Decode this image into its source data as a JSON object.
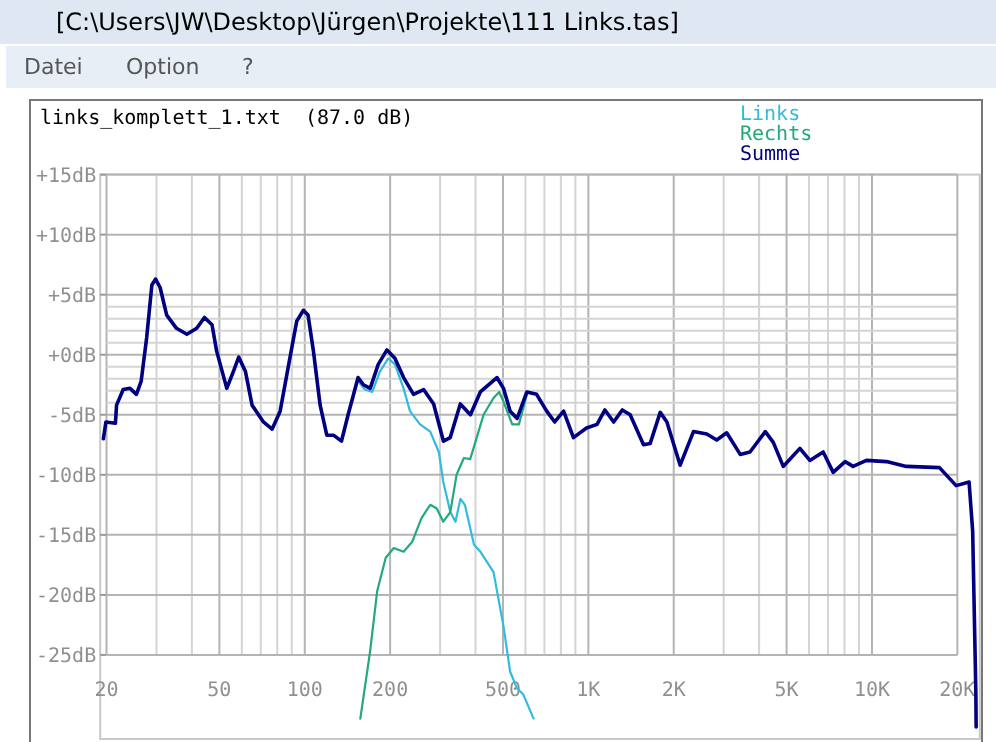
{
  "chart_data": {
    "type": "line",
    "title": "links_komplett_1.txt  (87.0 dB)",
    "annotations": [
      "[C:\\Users\\JW\\Desktop\\Jürgen\\Projekte\\111 Links.tas]",
      "Datei",
      "Option",
      "?"
    ],
    "log": "x",
    "grid": true,
    "legend": "top right",
    "marker": "none",
    "line_style": "solid",
    "xlim": [
      19,
      24000
    ],
    "ylim": [
      -32,
      15
    ],
    "xticks": [
      20,
      {
        "value": 30,
        "label": null
      },
      {
        "value": 40,
        "label": null
      },
      50,
      {
        "value": 60,
        "label": null
      },
      {
        "value": 70,
        "label": null
      },
      {
        "value": 80,
        "label": null
      },
      {
        "value": 90,
        "label": null
      },
      100,
      200,
      {
        "value": 300,
        "label": null
      },
      {
        "value": 400,
        "label": null
      },
      500,
      {
        "value": 600,
        "label": null
      },
      {
        "value": 700,
        "label": null
      },
      {
        "value": 800,
        "label": null
      },
      {
        "value": 900,
        "label": null
      },
      {
        "value": 1000,
        "label": "1K"
      },
      {
        "value": 2000,
        "label": "2K"
      },
      {
        "value": 3000,
        "label": null
      },
      {
        "value": 4000,
        "label": null
      },
      {
        "value": 5000,
        "label": "5K"
      },
      {
        "value": 6000,
        "label": null
      },
      {
        "value": 7000,
        "label": null
      },
      {
        "value": 8000,
        "label": null
      },
      {
        "value": 9000,
        "label": null
      },
      {
        "value": 10000,
        "label": "10K"
      },
      {
        "value": 20000,
        "label": "20K"
      }
    ],
    "yticks": [
      {
        "value": 15,
        "label": "+15dB"
      },
      {
        "value": 10,
        "label": "+10dB"
      },
      {
        "value": 5,
        "label": "+5dB"
      },
      {
        "value": 4,
        "label": null
      },
      {
        "value": 3,
        "label": null
      },
      {
        "value": 2,
        "label": null
      },
      {
        "value": 1,
        "label": null
      },
      {
        "value": 0,
        "label": "+0dB"
      },
      {
        "value": -1,
        "label": null
      },
      {
        "value": -2,
        "label": null
      },
      {
        "value": -3,
        "label": null
      },
      {
        "value": -4,
        "label": null
      },
      {
        "value": -5,
        "label": "-5dB"
      },
      {
        "value": -10,
        "label": "-10dB"
      },
      {
        "value": -15,
        "label": "-15dB"
      },
      {
        "value": -20,
        "label": "-20dB"
      },
      {
        "value": -25,
        "label": "-25dB"
      }
    ],
    "series": [
      {
        "name": "Links",
        "color": "#33bbdd",
        "x": [
          154,
          163,
          173,
          184,
          197,
          208,
          223,
          235,
          255,
          277,
          297,
          308,
          326,
          340,
          354,
          367,
          395,
          416,
          463,
          502,
          530,
          561,
          590,
          641
        ],
        "values": [
          -2.2,
          -2.9,
          -3.1,
          -1.4,
          -0.3,
          -0.8,
          -2.8,
          -4.7,
          -5.8,
          -6.4,
          -8.1,
          -10.6,
          -13.1,
          -13.9,
          -12,
          -12.5,
          -15.8,
          -16.4,
          -18.1,
          -22.6,
          -26.4,
          -27.8,
          -28.3,
          -30.3
        ]
      },
      {
        "name": "Rechts",
        "color": "#22aa77",
        "x": [
          157,
          170,
          180,
          193,
          206,
          223,
          239,
          258,
          277,
          292,
          308,
          326,
          343,
          364,
          383,
          404,
          427,
          463,
          485,
          502,
          539,
          569,
          607
        ],
        "values": [
          -30.3,
          -24.7,
          -19.7,
          -16.9,
          -16.1,
          -16.4,
          -15.6,
          -13.6,
          -12.5,
          -12.8,
          -13.9,
          -13.1,
          -10,
          -8.6,
          -8.7,
          -6.9,
          -5,
          -3.6,
          -3.1,
          -3.9,
          -5.8,
          -5.8,
          -3.3
        ]
      },
      {
        "name": "Summe",
        "color": "#000080",
        "x": [
          19.5,
          19.9,
          21.5,
          21.7,
          22.9,
          24.2,
          25.5,
          26.5,
          27.7,
          28.9,
          29.8,
          30.9,
          32.6,
          35.3,
          38.4,
          41.6,
          44.3,
          47.1,
          48.9,
          53.1,
          56,
          58.5,
          61.8,
          65.2,
          71.5,
          76.7,
          81.9,
          87.8,
          93.7,
          98.9,
          102.7,
          107.3,
          113.3,
          119.6,
          126.3,
          134.7,
          142.2,
          154.2,
          161,
          170.1,
          181.6,
          194.9,
          207.9,
          223.1,
          241.9,
          262.5,
          284.7,
          308.4,
          325.8,
          353.6,
          383.8,
          416,
          476,
          502,
          530,
          561,
          607,
          657,
          713,
          761,
          818,
          886,
          985,
          1073,
          1144,
          1228,
          1317,
          1404,
          1565,
          1651,
          1792,
          1892,
          2107,
          2347,
          2615,
          2835,
          3075,
          3431,
          3715,
          4206,
          4488,
          4866,
          5570,
          6040,
          6730,
          7300,
          8040,
          8580,
          9560,
          11250,
          13220,
          17300,
          19800,
          22000,
          22650,
          23240,
          23300
        ],
        "values": [
          -7,
          -5.6,
          -5.7,
          -4.2,
          -2.9,
          -2.8,
          -3.3,
          -2.2,
          1.4,
          5.8,
          6.3,
          5.6,
          3.3,
          2.2,
          1.7,
          2.2,
          3.1,
          2.5,
          0.3,
          -2.8,
          -1.4,
          -0.2,
          -1.4,
          -4.2,
          -5.6,
          -6.2,
          -4.7,
          -0.8,
          2.8,
          3.7,
          3.3,
          0.3,
          -4.2,
          -6.7,
          -6.7,
          -7.2,
          -5,
          -1.9,
          -2.5,
          -2.8,
          -0.8,
          0.4,
          -0.3,
          -1.9,
          -3.3,
          -2.9,
          -4.1,
          -7.2,
          -6.9,
          -4.1,
          -5,
          -3.1,
          -1.9,
          -2.8,
          -4.7,
          -5.3,
          -3.1,
          -3.3,
          -4.7,
          -5.6,
          -4.7,
          -6.9,
          -6.1,
          -5.8,
          -4.6,
          -5.6,
          -4.6,
          -5,
          -7.5,
          -7.4,
          -4.8,
          -5.6,
          -9.2,
          -6.4,
          -6.6,
          -7.1,
          -6.5,
          -8.3,
          -8.1,
          -6.4,
          -7.3,
          -9.3,
          -7.8,
          -8.8,
          -8.1,
          -9.8,
          -8.9,
          -9.3,
          -8.8,
          -8.9,
          -9.3,
          -9.4,
          -10.9,
          -10.6,
          -14.7,
          -28,
          -31
        ]
      }
    ]
  }
}
